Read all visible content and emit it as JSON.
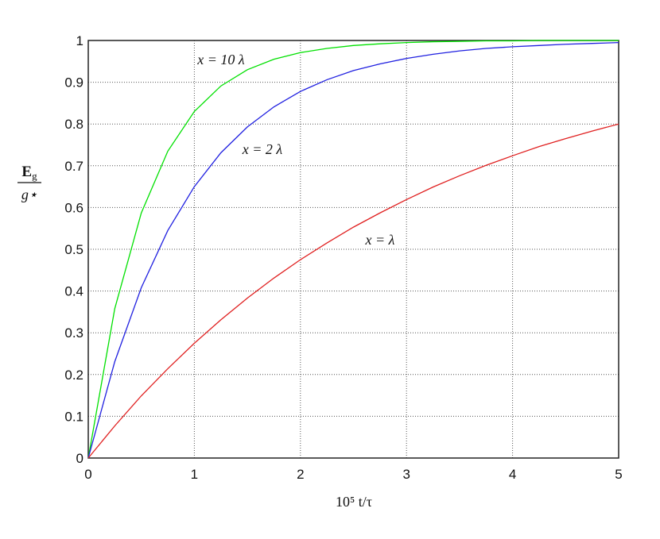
{
  "chart_data": {
    "type": "line",
    "x": [
      0,
      0.25,
      0.5,
      0.75,
      1,
      1.25,
      1.5,
      1.75,
      2,
      2.25,
      2.5,
      2.75,
      3,
      3.25,
      3.5,
      3.75,
      4,
      4.25,
      4.5,
      4.75,
      5
    ],
    "series": [
      {
        "color": "#00e000",
        "values": [
          0,
          0.358,
          0.587,
          0.735,
          0.83,
          0.891,
          0.93,
          0.955,
          0.971,
          0.981,
          0.988,
          0.992,
          0.995,
          0.997,
          0.998,
          0.999,
          0.999,
          1,
          1,
          1,
          1
        ]
      },
      {
        "color": "#2020e0",
        "values": [
          0,
          0.231,
          0.408,
          0.545,
          0.65,
          0.731,
          0.793,
          0.841,
          0.878,
          0.906,
          0.928,
          0.944,
          0.957,
          0.967,
          0.975,
          0.981,
          0.985,
          0.988,
          0.991,
          0.993,
          0.995
        ]
      },
      {
        "color": "#e02020",
        "values": [
          0,
          0.077,
          0.149,
          0.214,
          0.275,
          0.331,
          0.383,
          0.431,
          0.475,
          0.515,
          0.553,
          0.587,
          0.619,
          0.649,
          0.676,
          0.701,
          0.724,
          0.746,
          0.765,
          0.783,
          0.8
        ]
      }
    ],
    "annotations": [
      "x = 10 λ",
      "x = 2 λ",
      "x = λ"
    ],
    "x_label": "10⁵  t/τ",
    "y_label": {
      "numerator": {
        "base": "E",
        "sub": "g"
      },
      "denominator": "g⋆"
    },
    "xlim": [
      0,
      5
    ],
    "xticks": [
      0,
      1,
      2,
      3,
      4,
      5
    ],
    "ylim": [
      0,
      1
    ],
    "yticks": [
      0,
      0.1,
      0.2,
      0.3,
      0.4,
      0.5,
      0.6,
      0.7,
      0.8,
      0.9,
      1
    ],
    "grid": true
  }
}
